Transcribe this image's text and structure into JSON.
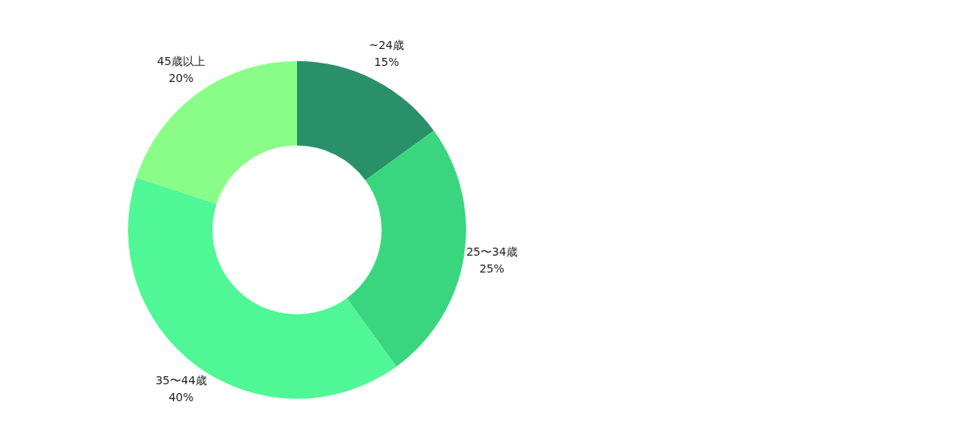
{
  "chart_data": {
    "type": "donut",
    "categories": [
      "~24歳",
      "25〜34歳",
      "35〜44歳",
      "45歳以上"
    ],
    "values": [
      15,
      25,
      40,
      20
    ],
    "colors": [
      "#2a9069",
      "#3ad67f",
      "#50f796",
      "#8afd88"
    ],
    "value_labels": [
      "15%",
      "25%",
      "40%",
      "20%"
    ],
    "legend": false
  }
}
